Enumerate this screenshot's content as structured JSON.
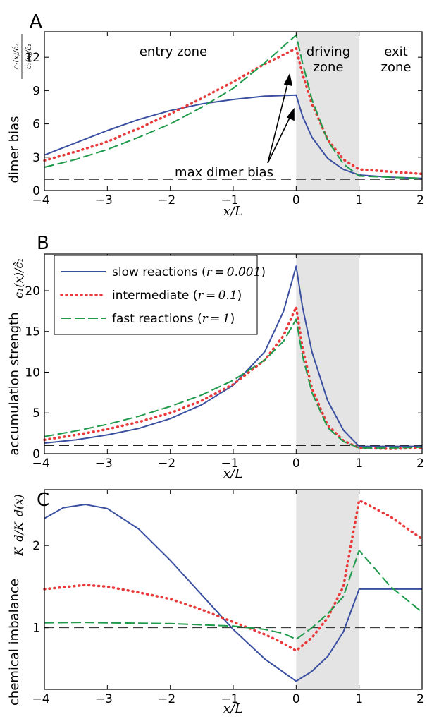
{
  "chart_data": [
    {
      "type": "line",
      "panel_label": "A",
      "ylabel": "dimer bias",
      "ratio_label_top": "c₂(x)/ĉ₂",
      "ratio_label_bottom": "c₁(x)/ĉ₁",
      "xlabel": "x/L",
      "xlim": [
        -4,
        2
      ],
      "ylim": [
        0,
        14.3
      ],
      "xticks": [
        "−4",
        "−3",
        "−2",
        "−1",
        "0",
        "1",
        "2"
      ],
      "yticks": [
        "0",
        "3",
        "6",
        "9",
        "12"
      ],
      "ytick_values": [
        0,
        3,
        6,
        9,
        12
      ],
      "shaded_region": [
        0,
        1
      ],
      "reference_line": 1,
      "zone_labels": {
        "entry": "entry zone",
        "driving_1": "driving",
        "driving_2": "zone",
        "exit_1": "exit",
        "exit_2": "zone"
      },
      "annotation": "max dimer bias",
      "series": [
        {
          "style": "solid",
          "color": "#3a4fa0",
          "points": [
            [
              -4,
              3.2
            ],
            [
              -3.5,
              4.3
            ],
            [
              -3,
              5.4
            ],
            [
              -2.5,
              6.4
            ],
            [
              -2,
              7.2
            ],
            [
              -1.5,
              7.8
            ],
            [
              -1,
              8.2
            ],
            [
              -0.5,
              8.5
            ],
            [
              0,
              8.6
            ],
            [
              0.1,
              6.7
            ],
            [
              0.25,
              4.8
            ],
            [
              0.5,
              2.9
            ],
            [
              0.75,
              1.9
            ],
            [
              1,
              1.4
            ],
            [
              1.5,
              1.2
            ],
            [
              2,
              1.1
            ]
          ]
        },
        {
          "style": "dotted",
          "color": "#e83a3a",
          "points": [
            [
              -4,
              2.7
            ],
            [
              -3.5,
              3.5
            ],
            [
              -3,
              4.4
            ],
            [
              -2.5,
              5.6
            ],
            [
              -2,
              6.9
            ],
            [
              -1.5,
              8.3
            ],
            [
              -1,
              9.8
            ],
            [
              -0.5,
              11.4
            ],
            [
              0,
              12.8
            ],
            [
              0.1,
              10.5
            ],
            [
              0.25,
              7.8
            ],
            [
              0.5,
              4.6
            ],
            [
              0.75,
              2.8
            ],
            [
              1,
              1.9
            ],
            [
              1.5,
              1.7
            ],
            [
              2,
              1.5
            ]
          ]
        },
        {
          "style": "dashed",
          "color": "#1e9a4a",
          "points": [
            [
              -4,
              2.1
            ],
            [
              -3.5,
              2.8
            ],
            [
              -3,
              3.7
            ],
            [
              -2.5,
              4.8
            ],
            [
              -2,
              6.0
            ],
            [
              -1.5,
              7.5
            ],
            [
              -1,
              9.2
            ],
            [
              -0.5,
              11.5
            ],
            [
              0,
              14.0
            ],
            [
              0.1,
              11.5
            ],
            [
              0.25,
              8.2
            ],
            [
              0.5,
              4.5
            ],
            [
              0.75,
              2.4
            ],
            [
              1,
              1.3
            ],
            [
              1.5,
              1.2
            ],
            [
              2,
              1.1
            ]
          ]
        }
      ]
    },
    {
      "type": "line",
      "panel_label": "B",
      "ylabel": "accumulation strength",
      "ratio_label": "c₁(x)/ĉ₁",
      "xlabel": "x/L",
      "xlim": [
        -4,
        2
      ],
      "ylim": [
        0,
        24.5
      ],
      "xticks": [
        "−4",
        "−3",
        "−2",
        "−1",
        "0",
        "1",
        "2"
      ],
      "yticks": [
        "0",
        "5",
        "10",
        "15",
        "20"
      ],
      "ytick_values": [
        0,
        5,
        10,
        15,
        20
      ],
      "shaded_region": [
        0,
        1
      ],
      "reference_line": 1,
      "legend": [
        {
          "text": "slow reactions (",
          "math": "r = 0.001",
          "close": ")"
        },
        {
          "text": "intermediate (",
          "math": "r = 0.1",
          "close": ")"
        },
        {
          "text": "fast reactions (",
          "math": "r = 1",
          "close": ")"
        }
      ],
      "series": [
        {
          "style": "solid",
          "color": "#3a4fa0",
          "points": [
            [
              -4,
              1.3
            ],
            [
              -3.5,
              1.7
            ],
            [
              -3,
              2.3
            ],
            [
              -2.5,
              3.1
            ],
            [
              -2,
              4.3
            ],
            [
              -1.5,
              6.0
            ],
            [
              -1,
              8.4
            ],
            [
              -0.5,
              12.5
            ],
            [
              -0.2,
              17.5
            ],
            [
              0,
              23.0
            ],
            [
              0.1,
              18.0
            ],
            [
              0.25,
              12.5
            ],
            [
              0.5,
              6.5
            ],
            [
              0.75,
              2.9
            ],
            [
              1,
              0.9
            ],
            [
              1.5,
              0.9
            ],
            [
              2,
              0.9
            ]
          ]
        },
        {
          "style": "dotted",
          "color": "#e83a3a",
          "points": [
            [
              -4,
              1.7
            ],
            [
              -3.5,
              2.3
            ],
            [
              -3,
              3.0
            ],
            [
              -2.5,
              3.9
            ],
            [
              -2,
              5.0
            ],
            [
              -1.5,
              6.5
            ],
            [
              -1,
              8.5
            ],
            [
              -0.5,
              11.5
            ],
            [
              -0.2,
              14.5
            ],
            [
              0,
              18.0
            ],
            [
              0.1,
              13.0
            ],
            [
              0.25,
              8.0
            ],
            [
              0.5,
              3.5
            ],
            [
              0.75,
              1.6
            ],
            [
              1,
              0.7
            ],
            [
              1.5,
              0.6
            ],
            [
              2,
              0.7
            ]
          ]
        },
        {
          "style": "dashed",
          "color": "#1e9a4a",
          "points": [
            [
              -4,
              2.1
            ],
            [
              -3.5,
              2.8
            ],
            [
              -3,
              3.6
            ],
            [
              -2.5,
              4.6
            ],
            [
              -2,
              5.8
            ],
            [
              -1.5,
              7.2
            ],
            [
              -1,
              9.0
            ],
            [
              -0.5,
              11.5
            ],
            [
              -0.2,
              13.8
            ],
            [
              0,
              16.5
            ],
            [
              0.1,
              12.0
            ],
            [
              0.25,
              7.5
            ],
            [
              0.5,
              3.2
            ],
            [
              0.75,
              1.5
            ],
            [
              1,
              0.7
            ],
            [
              1.5,
              0.7
            ],
            [
              2,
              0.8
            ]
          ]
        }
      ]
    },
    {
      "type": "line",
      "panel_label": "C",
      "ylabel": "chemical imbalance",
      "ratio_label": "K_d/K_d(x)",
      "xlabel": "x/L",
      "xlim": [
        -4,
        2
      ],
      "ylim": [
        0.25,
        2.68
      ],
      "xticks": [
        "−4",
        "−3",
        "−2",
        "−1",
        "0",
        "1",
        "2"
      ],
      "yticks": [
        "1",
        "2"
      ],
      "ytick_values": [
        1,
        2
      ],
      "shaded_region": [
        0,
        1
      ],
      "reference_line": 1,
      "series": [
        {
          "style": "solid",
          "color": "#3a4fa0",
          "points": [
            [
              -4,
              2.33
            ],
            [
              -3.7,
              2.46
            ],
            [
              -3.35,
              2.5
            ],
            [
              -3,
              2.45
            ],
            [
              -2.5,
              2.2
            ],
            [
              -2,
              1.82
            ],
            [
              -1.5,
              1.4
            ],
            [
              -1,
              0.98
            ],
            [
              -0.5,
              0.62
            ],
            [
              0,
              0.35
            ],
            [
              0.25,
              0.47
            ],
            [
              0.5,
              0.65
            ],
            [
              0.75,
              0.95
            ],
            [
              1,
              1.47
            ],
            [
              1.5,
              1.47
            ],
            [
              2,
              1.47
            ]
          ]
        },
        {
          "style": "dotted",
          "color": "#e83a3a",
          "points": [
            [
              -4,
              1.47
            ],
            [
              -3.35,
              1.52
            ],
            [
              -3,
              1.5
            ],
            [
              -2.5,
              1.43
            ],
            [
              -2,
              1.35
            ],
            [
              -1.5,
              1.22
            ],
            [
              -1,
              1.07
            ],
            [
              -0.5,
              0.92
            ],
            [
              -0.2,
              0.81
            ],
            [
              0,
              0.72
            ],
            [
              0.25,
              0.88
            ],
            [
              0.5,
              1.12
            ],
            [
              0.75,
              1.5
            ],
            [
              1,
              2.55
            ],
            [
              1.5,
              2.35
            ],
            [
              2,
              2.08
            ]
          ]
        },
        {
          "style": "dashed",
          "color": "#1e9a4a",
          "points": [
            [
              -4,
              1.06
            ],
            [
              -3.35,
              1.065
            ],
            [
              -3,
              1.06
            ],
            [
              -2,
              1.05
            ],
            [
              -1,
              1.02
            ],
            [
              -0.5,
              0.98
            ],
            [
              -0.2,
              0.93
            ],
            [
              0,
              0.86
            ],
            [
              0.25,
              1.0
            ],
            [
              0.5,
              1.17
            ],
            [
              0.75,
              1.38
            ],
            [
              1,
              1.94
            ],
            [
              1.5,
              1.5
            ],
            [
              2,
              1.19
            ]
          ]
        }
      ]
    }
  ]
}
